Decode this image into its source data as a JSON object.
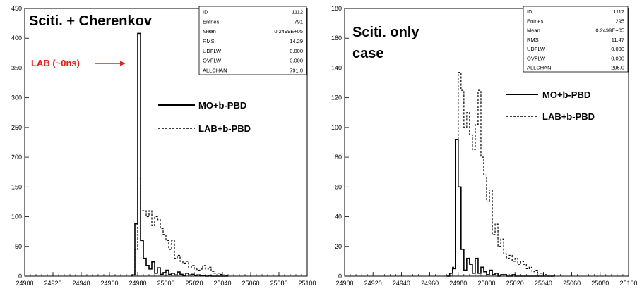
{
  "chart_data": [
    {
      "type": "line",
      "title": "Sciti. + Cherenkov",
      "xlim": [
        24900,
        25100
      ],
      "ylim": [
        0,
        450
      ],
      "xticks": [
        "24900",
        "24920",
        "24940",
        "24960",
        "24980",
        "25000",
        "25020",
        "25040",
        "25060",
        "25080",
        "25100"
      ],
      "yticks": [
        "0",
        "50",
        "100",
        "150",
        "200",
        "250",
        "300",
        "350",
        "400",
        "450"
      ],
      "grid": false,
      "legend_position": "middle-right",
      "stats": [
        {
          "label": "ID",
          "value": "1112"
        },
        {
          "label": "Entries",
          "value": "791"
        },
        {
          "label": "Mean",
          "value": "0.2499E+05"
        },
        {
          "label": "RMS",
          "value": "14.29"
        },
        {
          "label": "UDFLW",
          "value": "0.000"
        },
        {
          "label": "OVFLW",
          "value": "0.000"
        },
        {
          "label": "ALLCHAN",
          "value": "791.0"
        }
      ],
      "legend": [
        {
          "label": "MO+b-PBD",
          "style": "solid"
        },
        {
          "label": "LAB+b-PBD",
          "style": "dashed"
        }
      ],
      "annotation": {
        "text": "LAB (~0ns)",
        "color": "#e02020"
      },
      "bin_start": 24976,
      "bin_width": 2,
      "series": [
        {
          "name": "MO+b-PBD",
          "style": "solid",
          "values": [
            2,
            88,
            408,
            60,
            30,
            18,
            12,
            24,
            5,
            14,
            3,
            6,
            10,
            3,
            5,
            2,
            7,
            3,
            1,
            5,
            2,
            3,
            1,
            2,
            1,
            1,
            0,
            1,
            0,
            0,
            0,
            0,
            0,
            0
          ]
        },
        {
          "name": "LAB+b-PBD",
          "style": "dashed",
          "values": [
            2,
            45,
            165,
            110,
            110,
            100,
            110,
            85,
            100,
            95,
            80,
            70,
            60,
            45,
            60,
            30,
            35,
            25,
            22,
            25,
            15,
            18,
            12,
            10,
            12,
            18,
            12,
            15,
            8,
            5,
            5,
            3,
            2,
            1
          ]
        }
      ]
    },
    {
      "type": "line",
      "title": "Sciti. only case",
      "title_lines": [
        "Sciti. only",
        "case"
      ],
      "xlim": [
        24900,
        25100
      ],
      "ylim": [
        0,
        180
      ],
      "xticks": [
        "24900",
        "24920",
        "24940",
        "24960",
        "24980",
        "25000",
        "25020",
        "25040",
        "25060",
        "25080",
        "25100"
      ],
      "yticks": [
        "0",
        "20",
        "40",
        "60",
        "80",
        "100",
        "120",
        "140",
        "160",
        "180"
      ],
      "grid": false,
      "legend_position": "middle-right",
      "stats": [
        {
          "label": "ID",
          "value": "1112"
        },
        {
          "label": "Entries",
          "value": "295"
        },
        {
          "label": "Mean",
          "value": "0.2499E+05"
        },
        {
          "label": "RMS",
          "value": "11.47"
        },
        {
          "label": "UDFLW",
          "value": "0.000"
        },
        {
          "label": "OVFLW",
          "value": "0.000"
        },
        {
          "label": "ALLCHAN",
          "value": "295.0"
        }
      ],
      "legend": [
        {
          "label": "MO+b-PBD",
          "style": "solid"
        },
        {
          "label": "LAB+b-PBD",
          "style": "dashed"
        }
      ],
      "bin_start": 24972,
      "bin_width": 2,
      "series": [
        {
          "name": "MO+b-PBD",
          "style": "solid",
          "values": [
            0,
            2,
            5,
            92,
            60,
            18,
            4,
            12,
            8,
            2,
            12,
            2,
            6,
            3,
            1,
            4,
            1,
            2,
            0,
            1,
            1,
            0,
            0,
            1,
            0,
            0,
            0,
            0,
            0,
            0,
            0,
            0,
            0,
            0,
            0,
            0,
            0,
            0
          ]
        },
        {
          "name": "LAB+b-PBD",
          "style": "dashed",
          "values": [
            0,
            2,
            6,
            78,
            137,
            125,
            100,
            110,
            95,
            85,
            102,
            125,
            80,
            68,
            50,
            58,
            28,
            35,
            20,
            25,
            15,
            12,
            14,
            10,
            12,
            8,
            10,
            8,
            5,
            6,
            3,
            4,
            2,
            2,
            1,
            1,
            0,
            0
          ]
        }
      ]
    }
  ]
}
